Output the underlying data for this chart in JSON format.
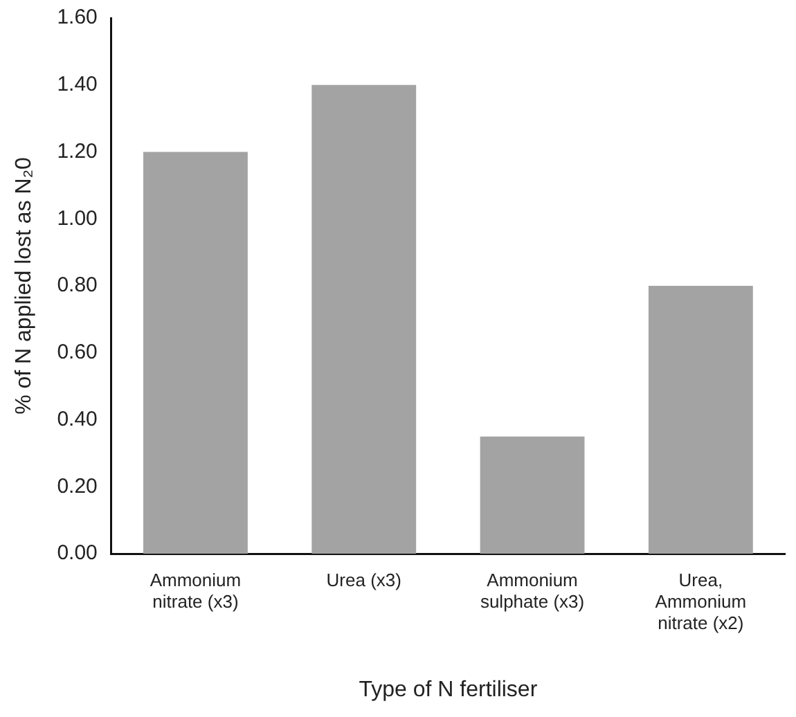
{
  "chart_data": {
    "type": "bar",
    "xlabel": "Type of N fertiliser",
    "ylabel": "% of N applied lost as N₂0",
    "categories": [
      "Ammonium nitrate (x3)",
      "Urea (x3)",
      "Ammonium sulphate (x3)",
      "Urea, Ammonium nitrate (x2)"
    ],
    "values": [
      1.2,
      1.4,
      0.35,
      0.8
    ],
    "color": "#a3a3a3",
    "ylim": [
      0,
      1.6
    ],
    "yticks": [
      {
        "value": 0,
        "label": "0.00"
      },
      {
        "value": 0.2,
        "label": "0.20"
      },
      {
        "value": 0.4,
        "label": "0.40"
      },
      {
        "value": 0.6,
        "label": "0.60"
      },
      {
        "value": 0.8,
        "label": "0.80"
      },
      {
        "value": 1,
        "label": "1.00"
      },
      {
        "value": 1.2,
        "label": "1.20"
      },
      {
        "value": 1.4,
        "label": "1.40"
      },
      {
        "value": 1.6,
        "label": "1.60"
      }
    ],
    "grid": false,
    "legend": false
  }
}
